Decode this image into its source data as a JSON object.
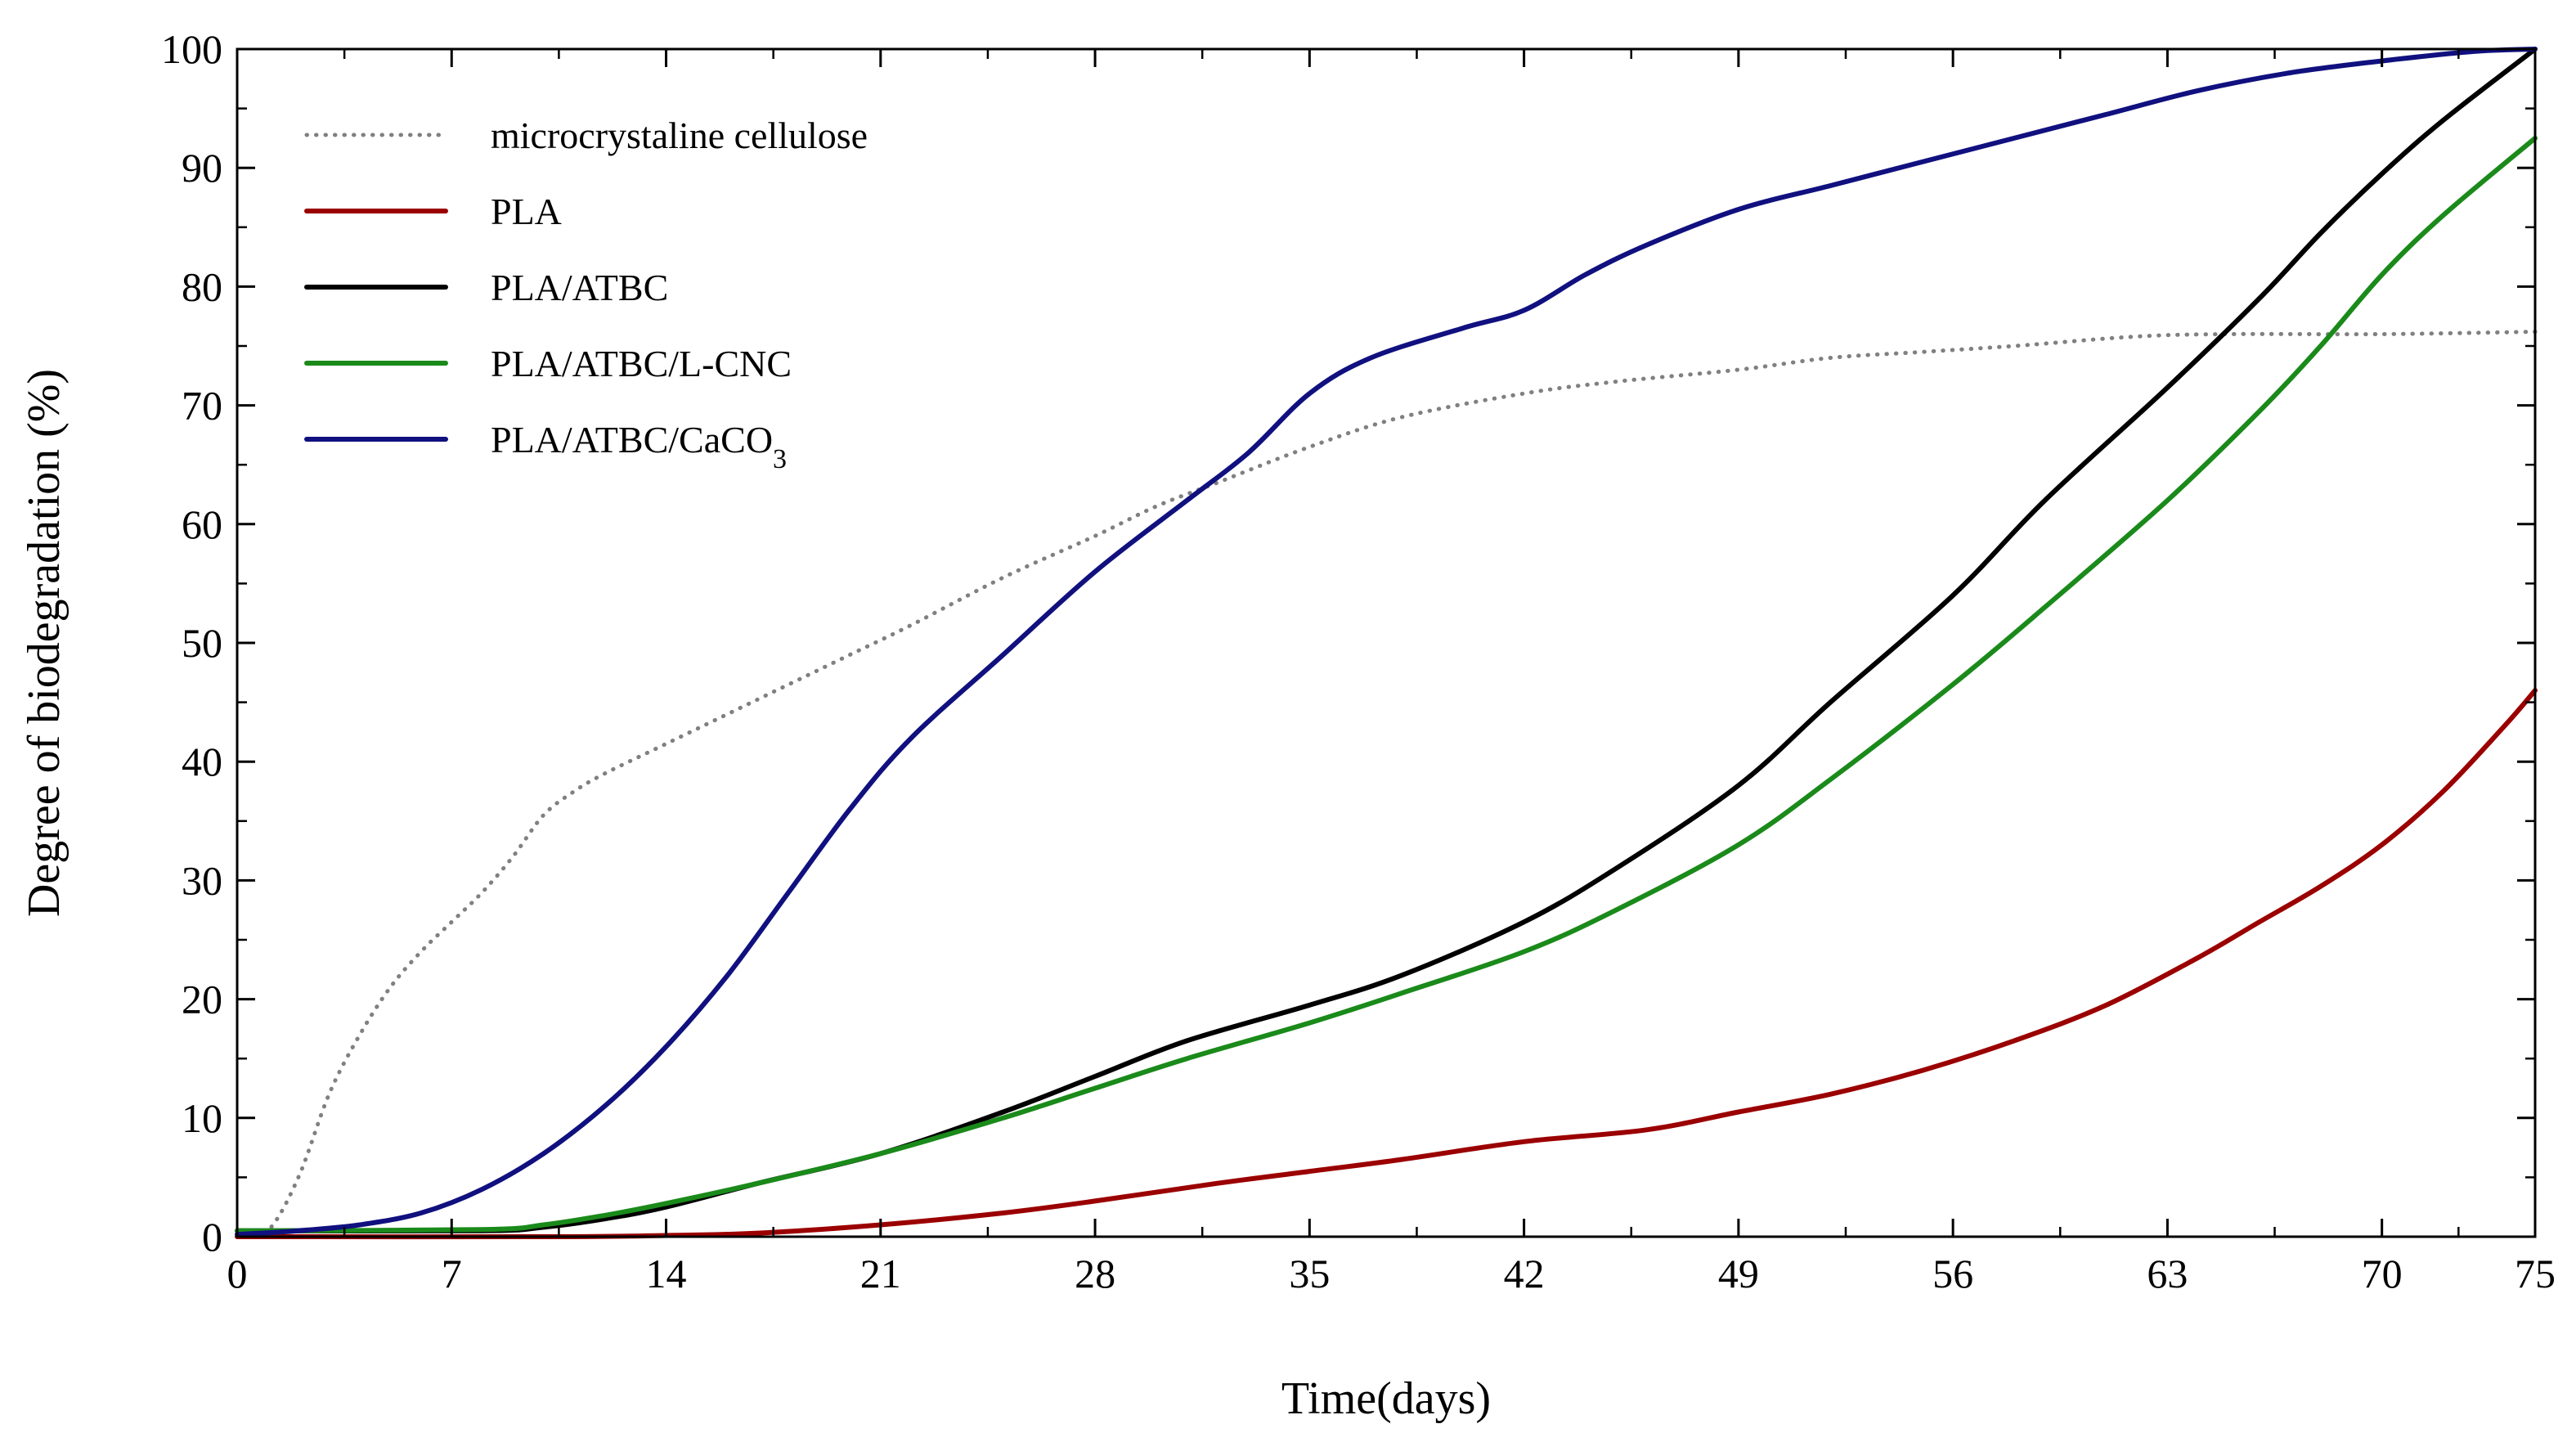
{
  "chart_data": {
    "type": "line",
    "title": "",
    "xlabel": "Time(days)",
    "ylabel": "Degree of biodegradation (%)",
    "xlim": [
      0,
      75
    ],
    "ylim": [
      0,
      100
    ],
    "xticks": [
      0,
      7,
      14,
      21,
      28,
      35,
      42,
      49,
      56,
      63,
      70,
      75
    ],
    "yticks": [
      0,
      10,
      20,
      30,
      40,
      50,
      60,
      70,
      80,
      90,
      100
    ],
    "xtick_labels": [
      "0",
      "7",
      "14",
      "21",
      "28",
      "35",
      "42",
      "49",
      "56",
      "63",
      "70",
      "75"
    ],
    "ytick_labels": [
      "0",
      "10",
      "20",
      "30",
      "40",
      "50",
      "60",
      "70",
      "80",
      "90",
      "100"
    ],
    "grid": false,
    "legend_position": "top-left",
    "series": [
      {
        "name": "microcrystaline cellulose",
        "color": "#808080",
        "style": "dotted",
        "x": [
          0,
          1,
          2,
          3,
          4,
          5,
          6,
          7,
          8,
          9,
          10,
          11,
          12,
          14,
          16,
          18,
          20,
          22,
          25,
          28,
          30,
          32,
          35,
          38,
          42,
          45,
          49,
          52,
          55,
          58,
          62,
          65,
          70,
          75
        ],
        "y": [
          0,
          0.5,
          5,
          12,
          17,
          21,
          24,
          26.5,
          29,
          32,
          35.5,
          37.5,
          39,
          41.5,
          44,
          46.5,
          49,
          51.5,
          55.5,
          59,
          61.5,
          63.5,
          66.5,
          69,
          71,
          72,
          73,
          74,
          74.5,
          75,
          75.8,
          76,
          76,
          76.2
        ]
      },
      {
        "name": "PLA",
        "color": "#9b0000",
        "style": "solid",
        "x": [
          0,
          10,
          14,
          17,
          21,
          25,
          28,
          32,
          35,
          38,
          42,
          46,
          49,
          52,
          55,
          58,
          61,
          64,
          66,
          68,
          70,
          72,
          74,
          75
        ],
        "y": [
          0,
          0,
          0.1,
          0.3,
          1,
          2,
          3,
          4.5,
          5.5,
          6.5,
          8,
          9,
          10.5,
          12,
          14,
          16.5,
          19.5,
          23.5,
          26.5,
          29.5,
          33,
          37.5,
          43,
          46
        ]
      },
      {
        "name": "PLA/ATBC",
        "color": "#000000",
        "style": "solid",
        "x": [
          0,
          8,
          10,
          12,
          14,
          17,
          21,
          25,
          28,
          31,
          35,
          38,
          42,
          45,
          49,
          52,
          56,
          59,
          63,
          66,
          68,
          70,
          72,
          75
        ],
        "y": [
          0.5,
          0.5,
          0.8,
          1.5,
          2.5,
          4.5,
          7,
          10.5,
          13.5,
          16.5,
          19.5,
          22,
          26.5,
          31,
          38,
          45,
          54,
          62,
          71.5,
          79,
          84.5,
          89.5,
          94,
          100
        ]
      },
      {
        "name": "PLA/ATBC/L-CNC",
        "color": "#1a8a1a",
        "style": "solid",
        "x": [
          0,
          8,
          10,
          12,
          14,
          17,
          21,
          25,
          28,
          31,
          35,
          38,
          42,
          45,
          49,
          52,
          56,
          59,
          63,
          66,
          68,
          70,
          72,
          75
        ],
        "y": [
          0.5,
          0.6,
          1,
          1.8,
          2.8,
          4.5,
          7,
          10,
          12.5,
          15,
          18,
          20.5,
          24,
          27.5,
          33,
          38.5,
          46.5,
          53,
          62,
          69.5,
          75,
          81,
          86,
          92.5
        ]
      },
      {
        "name": "PLA/ATBC/CaCO3",
        "color": "#10107f",
        "style": "solid",
        "x": [
          0,
          2,
          4,
          6,
          8,
          10,
          12,
          14,
          16,
          18,
          20,
          22,
          25,
          28,
          31,
          33,
          35,
          37,
          40,
          42,
          44,
          46,
          49,
          52,
          55,
          58,
          61,
          64,
          67,
          70,
          73,
          75
        ],
        "y": [
          0.2,
          0.5,
          1,
          2,
          4,
          7,
          11,
          16,
          22,
          29,
          36,
          42,
          49,
          56,
          62,
          66,
          71,
          74,
          76.5,
          78,
          81,
          83.5,
          86.5,
          88.5,
          90.5,
          92.5,
          94.5,
          96.5,
          98,
          99,
          99.8,
          100
        ]
      }
    ]
  }
}
